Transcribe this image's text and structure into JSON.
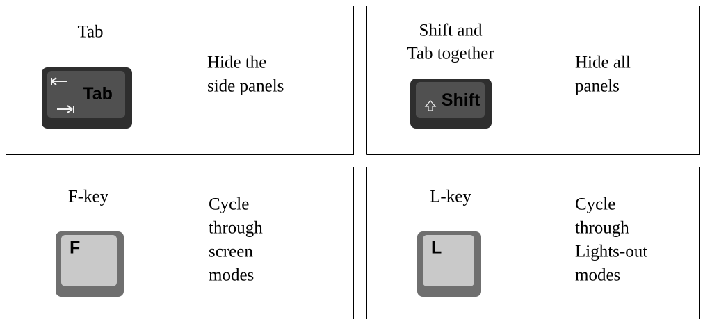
{
  "shortcuts": [
    {
      "key": [
        "Tab"
      ],
      "key_cap": "Tab",
      "action": [
        "Hide the",
        "side panels"
      ]
    },
    {
      "key": [
        "Shift and",
        "Tab together"
      ],
      "key_cap": "Shift",
      "action": [
        "Hide all",
        "panels"
      ]
    },
    {
      "key": [
        "F-key"
      ],
      "key_cap": "F",
      "action": [
        "Cycle",
        "through",
        "screen",
        "modes"
      ]
    },
    {
      "key": [
        "L-key"
      ],
      "key_cap": "L",
      "action": [
        "Cycle",
        "through",
        "Lights-out",
        "modes"
      ]
    }
  ]
}
